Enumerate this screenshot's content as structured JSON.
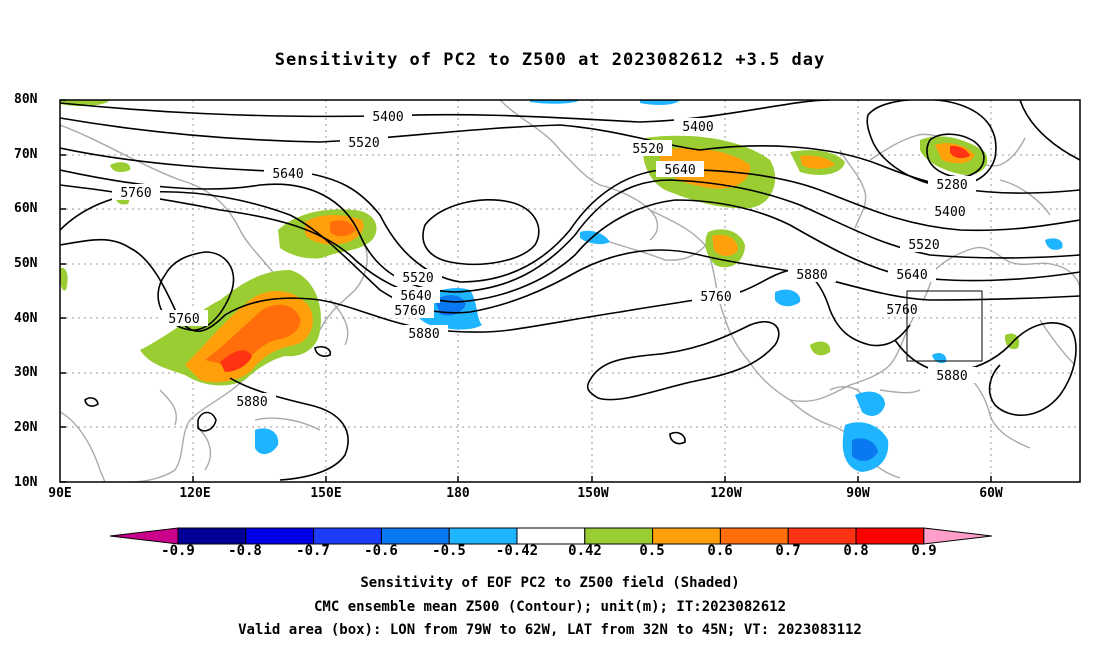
{
  "title": "Sensitivity of PC2 to Z500 at 2023082612 +3.5 day",
  "lat_labels": [
    "80N",
    "70N",
    "60N",
    "50N",
    "40N",
    "30N",
    "20N",
    "10N"
  ],
  "lon_labels": [
    "90E",
    "120E",
    "150E",
    "180",
    "150W",
    "120W",
    "90W",
    "60W"
  ],
  "contour_labels": [
    "5400",
    "5400",
    "5520",
    "5520",
    "5520",
    "5640",
    "5640",
    "5640",
    "5640",
    "5760",
    "5760",
    "5760",
    "5760",
    "5760",
    "5880",
    "5880",
    "5880",
    "5880",
    "5280",
    "5400",
    "5520"
  ],
  "colorbar": {
    "labels": [
      "-0.9",
      "-0.8",
      "-0.7",
      "-0.6",
      "-0.5",
      "-0.42",
      "0.42",
      "0.5",
      "0.6",
      "0.7",
      "0.8",
      "0.9"
    ],
    "colors": [
      "#c8008c",
      "#000096",
      "#0000e6",
      "#1e3cff",
      "#0a78f0",
      "#1eb4ff",
      "#ffffff",
      "#9acd32",
      "#ffa00a",
      "#ff6e0a",
      "#ff3214",
      "#ff0000",
      "#ff9ec8"
    ]
  },
  "footer": {
    "line1": "Sensitivity of EOF PC2 to Z500 field (Shaded)",
    "line2": "CMC ensemble mean Z500 (Contour); unit(m); IT:2023082612",
    "line3": "Valid area (box): LON from 79W to 62W, LAT from 32N to 45N; VT: 2023083112"
  }
}
